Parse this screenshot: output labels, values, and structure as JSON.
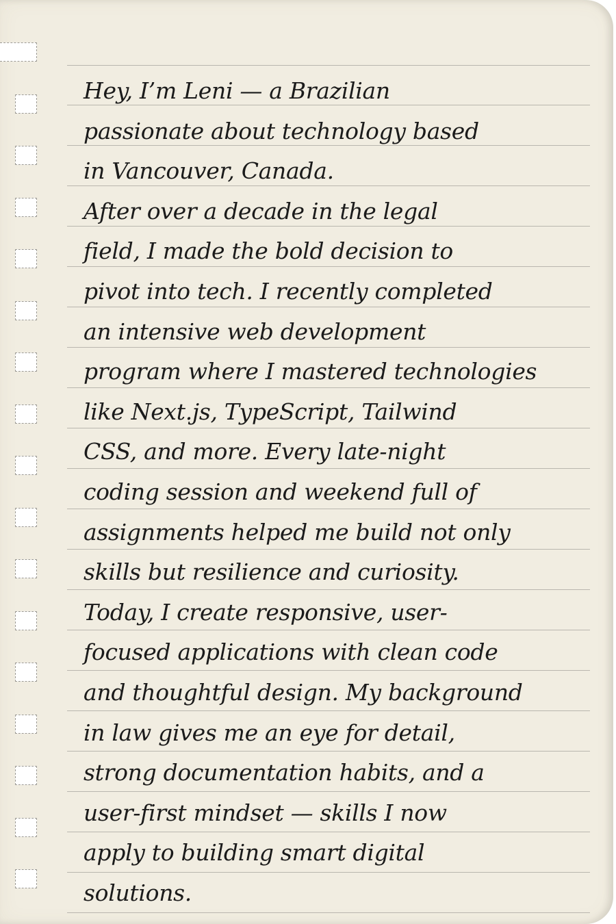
{
  "note": {
    "lines": [
      "Hey, I’m Leni — a Brazilian",
      "passionate about technology based",
      "in Vancouver, Canada.",
      "After over a decade in the legal",
      "field, I made the bold decision to",
      "pivot into tech. I recently completed",
      "an intensive web development",
      "program where I mastered technologies",
      "like Next.js, TypeScript, Tailwind",
      "CSS, and more. Every late-night",
      "coding session and weekend full of",
      "assignments helped me build not only",
      "skills but resilience and curiosity.",
      "Today, I create responsive, user-",
      "focused applications with clean code",
      "and thoughtful design. My background",
      "in law gives me an eye for detail,",
      "strong documentation habits, and a",
      "user-first mindset — skills I now",
      "apply to building smart digital",
      "solutions."
    ]
  }
}
